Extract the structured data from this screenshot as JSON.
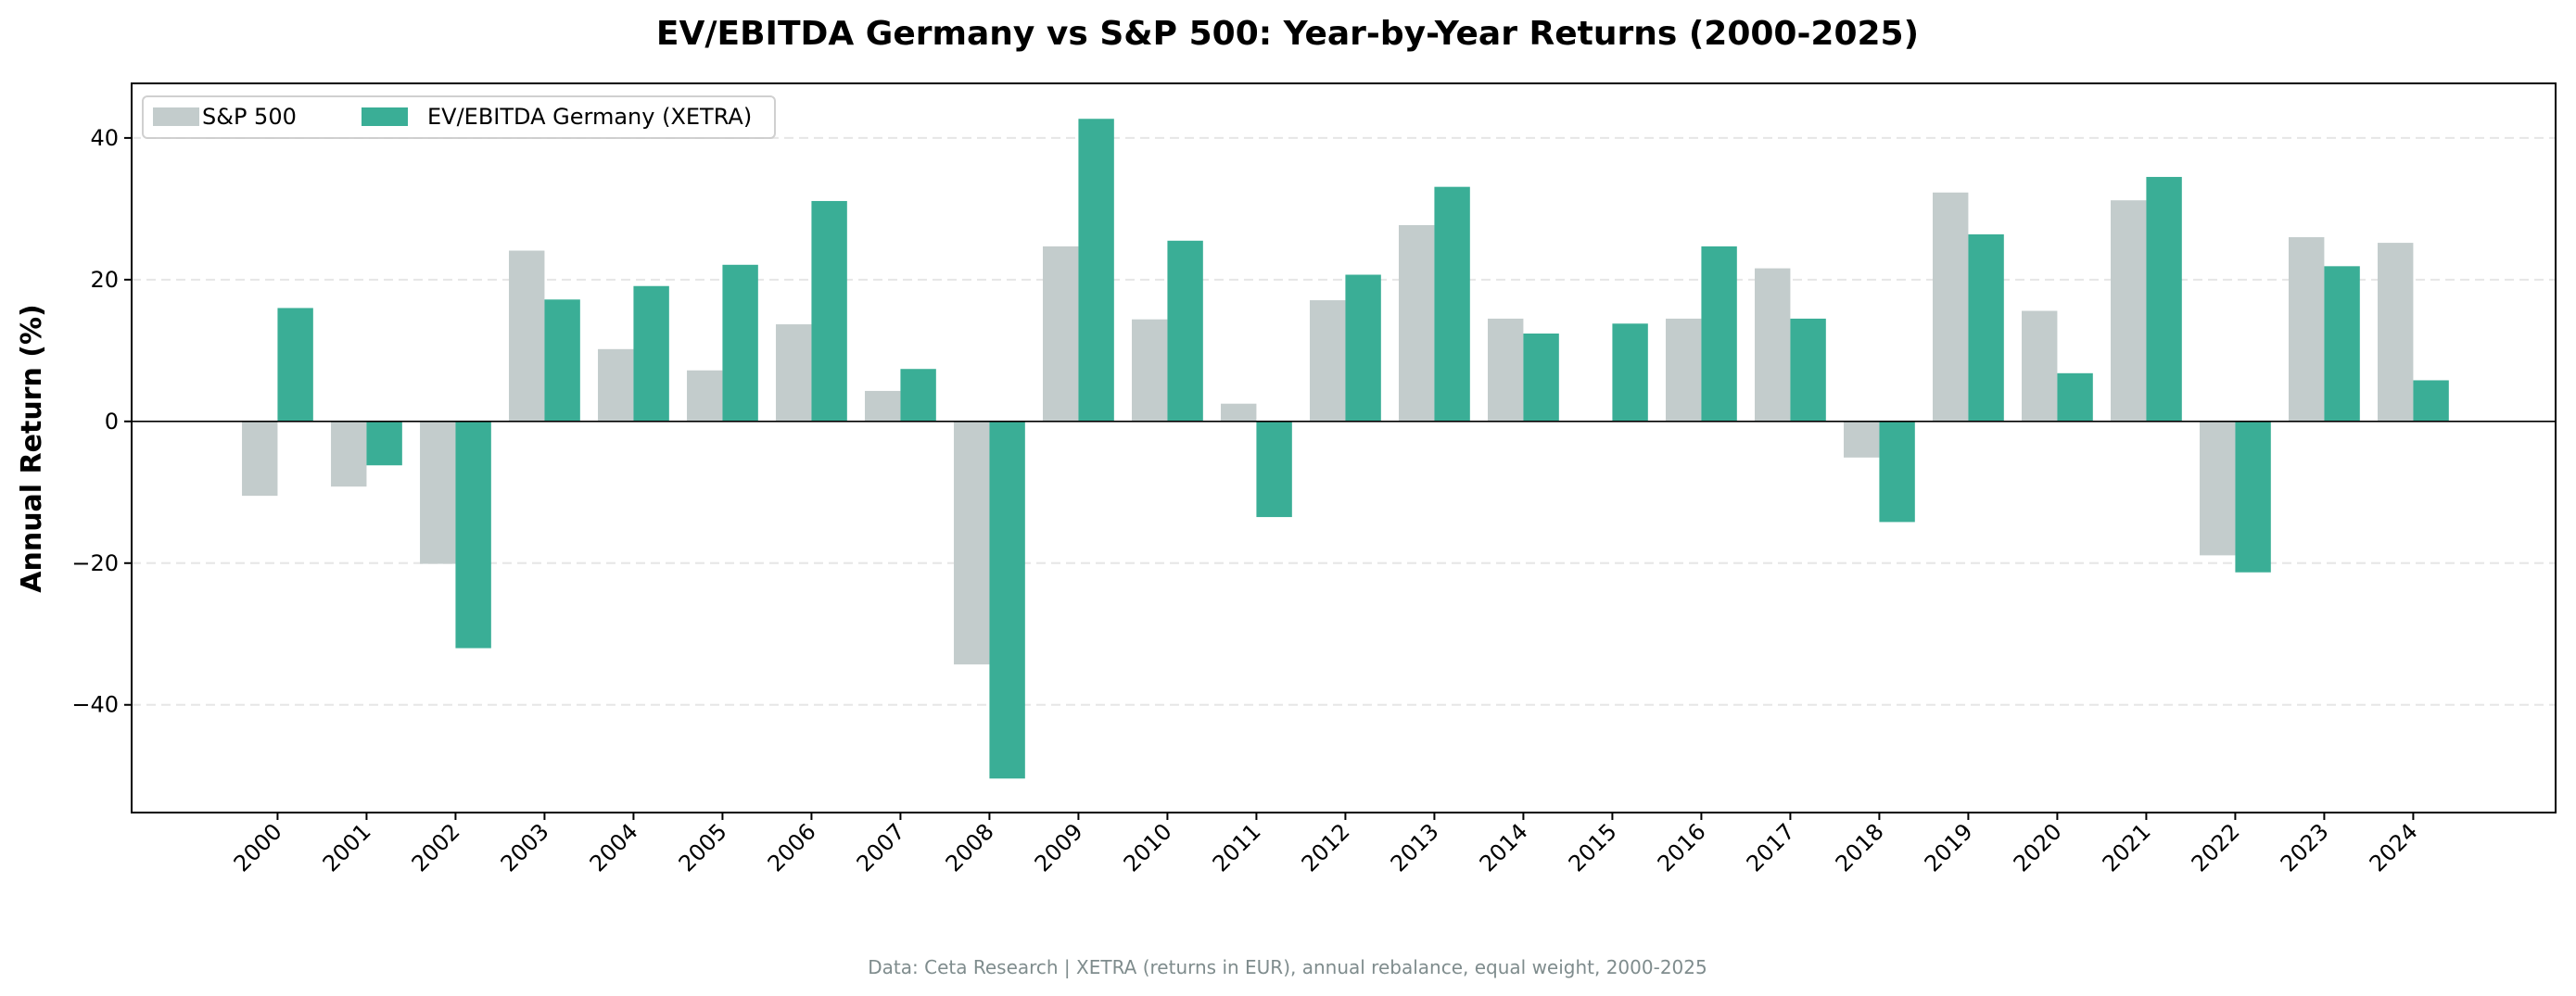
{
  "chart_data": {
    "type": "bar",
    "title": "EV/EBITDA Germany vs S&P 500: Year-by-Year Returns (2000-2025)",
    "xlabel": "",
    "ylabel": "Annual Return (%)",
    "footer": "Data: Ceta Research | XETRA (returns in EUR), annual rebalance, equal weight, 2000-2025",
    "categories": [
      "2000",
      "2001",
      "2002",
      "2003",
      "2004",
      "2005",
      "2006",
      "2007",
      "2008",
      "2009",
      "2010",
      "2011",
      "2012",
      "2013",
      "2014",
      "2015",
      "2016",
      "2017",
      "2018",
      "2019",
      "2020",
      "2021",
      "2022",
      "2023",
      "2024"
    ],
    "series": [
      {
        "name": "S&P 500",
        "color": "#c3cccc",
        "values": [
          -10.5,
          -9.2,
          -20.1,
          24.1,
          10.2,
          7.2,
          13.7,
          4.3,
          -34.3,
          24.7,
          14.4,
          2.5,
          17.1,
          27.7,
          14.5,
          0.0,
          14.5,
          21.6,
          -5.1,
          32.3,
          15.6,
          31.2,
          -18.9,
          26.0,
          25.2
        ]
      },
      {
        "name": "EV/EBITDA Germany (XETRA)",
        "color": "#3aae96",
        "values": [
          16.0,
          -6.2,
          -32.0,
          17.2,
          19.1,
          22.1,
          31.1,
          7.4,
          -50.4,
          42.7,
          25.5,
          -13.5,
          20.7,
          33.1,
          12.4,
          13.8,
          24.7,
          14.5,
          -14.2,
          26.4,
          6.8,
          34.5,
          -21.3,
          21.9,
          5.8
        ]
      }
    ],
    "yticks": [
      -40,
      -20,
      0,
      20,
      40
    ],
    "ytick_labels": [
      "−40",
      "−20",
      "0",
      "20",
      "40"
    ],
    "ylim": [
      -55.2,
      47.7
    ],
    "xlim": [
      -1.64,
      25.6
    ],
    "grid": "horizontal dashed",
    "legend_placement": "top-left"
  }
}
